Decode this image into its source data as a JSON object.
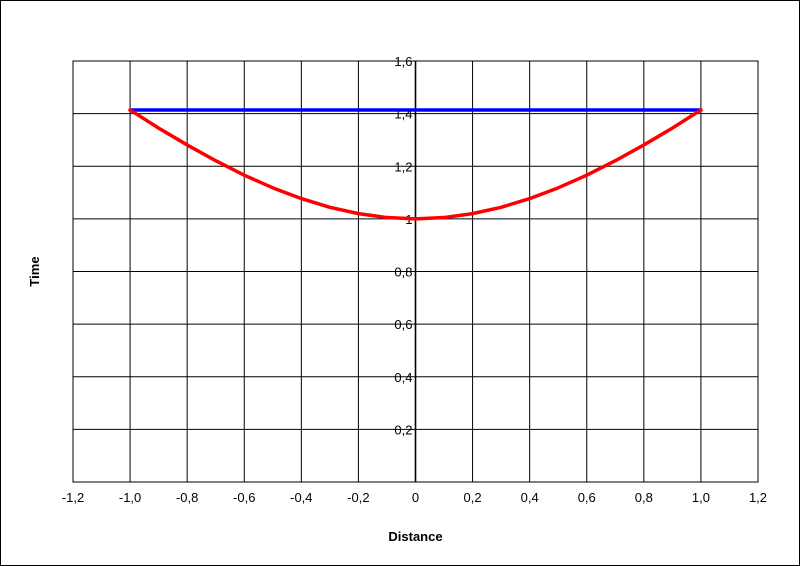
{
  "chart_data": {
    "type": "line",
    "title": "",
    "xlabel": "Distance",
    "ylabel": "Time",
    "xlim": [
      -1.2,
      1.2
    ],
    "ylim": [
      0,
      1.6
    ],
    "x_tick_step": 0.2,
    "y_tick_step": 0.2,
    "decimal_separator": ",",
    "grid": true,
    "legend": "none",
    "x_tick_labels": [
      "-1,2",
      "-1,0",
      "-0,8",
      "-0,6",
      "-0,4",
      "-0,2",
      "0",
      "0,2",
      "0,4",
      "0,6",
      "0,8",
      "1,0",
      "1,2"
    ],
    "y_tick_labels": [
      "0,2",
      "0,4",
      "0,6",
      "0,8",
      "1",
      "1,2",
      "1,4",
      "1,6"
    ],
    "series": [
      {
        "color": "#0000ff",
        "x": [
          -1.0,
          1.0
        ],
        "y": [
          1.414,
          1.414
        ]
      },
      {
        "color": "#ff0000",
        "x": [
          -1.0,
          -0.9,
          -0.8,
          -0.7,
          -0.6,
          -0.5,
          -0.4,
          -0.3,
          -0.2,
          -0.1,
          0.0,
          0.1,
          0.2,
          0.3,
          0.4,
          0.5,
          0.6,
          0.7,
          0.8,
          0.9,
          1.0
        ],
        "y": [
          1.414,
          1.345,
          1.281,
          1.221,
          1.166,
          1.118,
          1.077,
          1.044,
          1.02,
          1.005,
          1.0,
          1.005,
          1.02,
          1.044,
          1.077,
          1.118,
          1.166,
          1.221,
          1.281,
          1.345,
          1.414
        ]
      }
    ]
  }
}
